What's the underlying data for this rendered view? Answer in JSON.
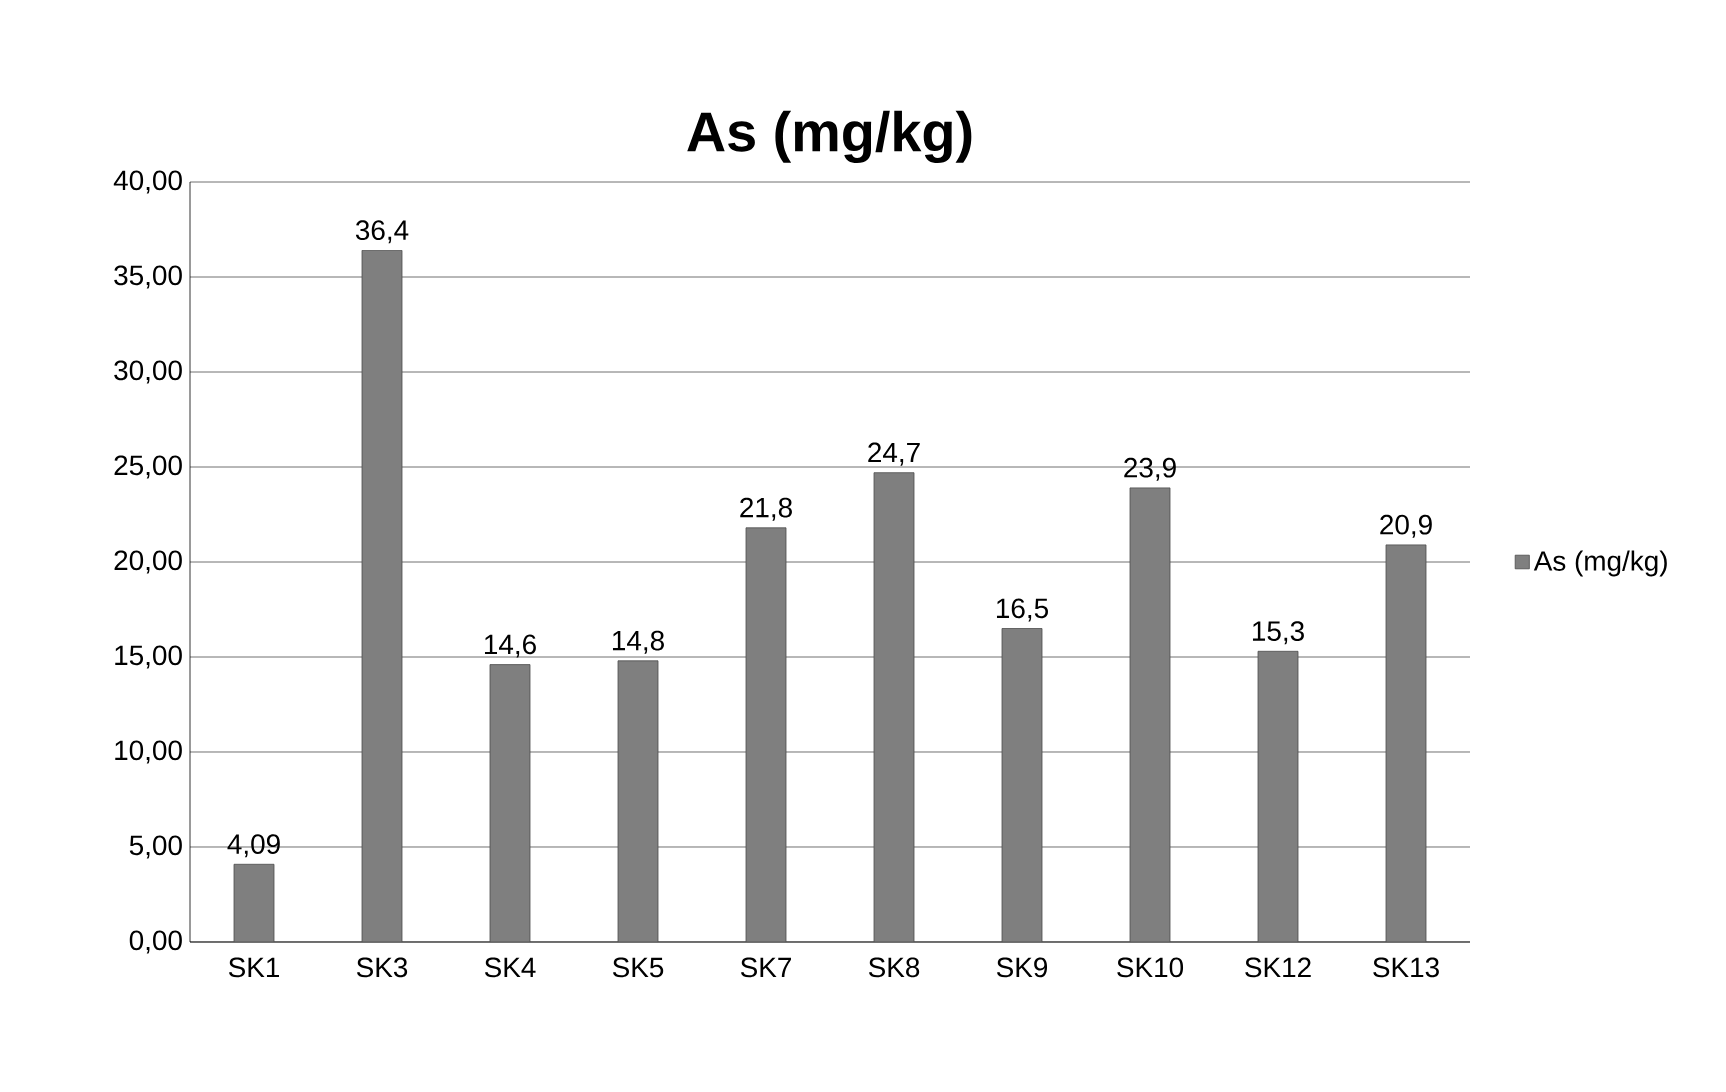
{
  "chart_data": {
    "type": "bar",
    "title": "As (mg/kg)",
    "categories": [
      "SK1",
      "SK3",
      "SK4",
      "SK5",
      "SK7",
      "SK8",
      "SK9",
      "SK10",
      "SK12",
      "SK13"
    ],
    "series": [
      {
        "name": "As (mg/kg)",
        "color": "#7f7f7f",
        "values": [
          4.09,
          36.4,
          14.6,
          14.8,
          21.8,
          24.7,
          16.5,
          23.9,
          15.3,
          20.9
        ],
        "value_labels": [
          "4,09",
          "36,4",
          "14,6",
          "14,8",
          "21,8",
          "24,7",
          "16,5",
          "23,9",
          "15,3",
          "20,9"
        ]
      }
    ],
    "ylim": [
      0,
      40
    ],
    "yticks": [
      {
        "value": 0,
        "label": "0,00"
      },
      {
        "value": 5,
        "label": "5,00"
      },
      {
        "value": 10,
        "label": "10,00"
      },
      {
        "value": 15,
        "label": "15,00"
      },
      {
        "value": 20,
        "label": "20,00"
      },
      {
        "value": 25,
        "label": "25,00"
      },
      {
        "value": 30,
        "label": "30,00"
      },
      {
        "value": 35,
        "label": "35,00"
      },
      {
        "value": 40,
        "label": "40,00"
      }
    ],
    "grid": "y",
    "legend": "right"
  }
}
